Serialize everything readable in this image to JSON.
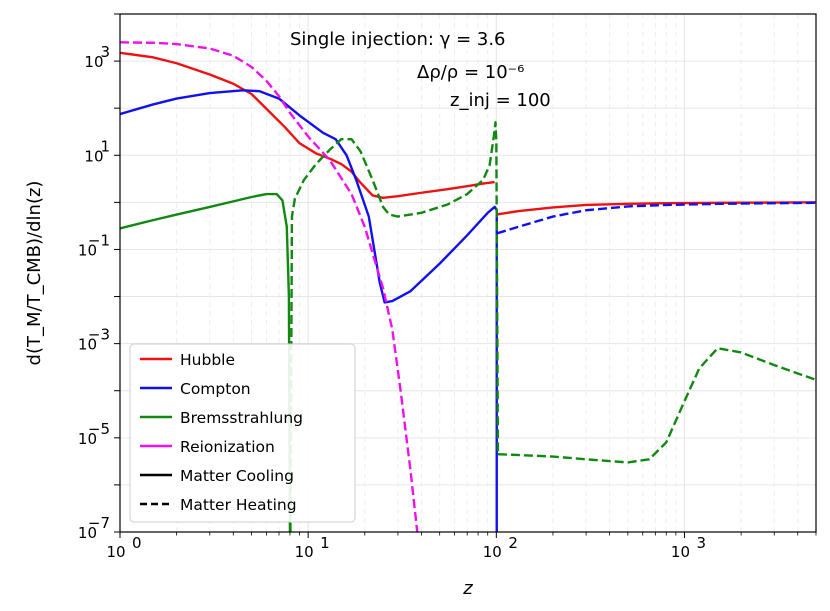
{
  "chart_data": {
    "type": "line",
    "xscale": "log",
    "yscale": "log",
    "xlim": [
      1,
      5000
    ],
    "ylim": [
      1e-07,
      10000
    ],
    "xlabel": "z",
    "ylabel": "d(T_M/T_CMB)/dln(z)",
    "grid": true,
    "legend_position": "lower-left",
    "annotations": [
      "Single injection: γ = 3.6",
      "Δρ/ρ = 10⁻⁶",
      "z_inj = 100"
    ],
    "x_ticks": [
      {
        "value": 1,
        "label": "10",
        "exp": "0"
      },
      {
        "value": 10,
        "label": "10",
        "exp": "1"
      },
      {
        "value": 100,
        "label": "10",
        "exp": "2"
      },
      {
        "value": 1000,
        "label": "10",
        "exp": "3"
      }
    ],
    "y_ticks": [
      {
        "value": 1e-07,
        "label": "10",
        "exp": "−7"
      },
      {
        "value": 1e-05,
        "label": "10",
        "exp": "−5"
      },
      {
        "value": 0.001,
        "label": "10",
        "exp": "−3"
      },
      {
        "value": 0.1,
        "label": "10",
        "exp": "−1"
      },
      {
        "value": 10,
        "label": "10",
        "exp": "1"
      },
      {
        "value": 1000,
        "label": "10",
        "exp": "3"
      }
    ],
    "legend": [
      {
        "label": "Hubble",
        "color": "#ee1111",
        "dash": "solid"
      },
      {
        "label": "Compton",
        "color": "#1111ee",
        "dash": "solid"
      },
      {
        "label": "Bremsstrahlung",
        "color": "#118811",
        "dash": "solid"
      },
      {
        "label": "Reionization",
        "color": "#ee11ee",
        "dash": "solid"
      },
      {
        "label": "Matter Cooling",
        "color": "#000000",
        "dash": "solid"
      },
      {
        "label": "Matter Heating",
        "color": "#000000",
        "dash": "dashed"
      }
    ],
    "series": [
      {
        "name": "Hubble",
        "color": "#ee1111",
        "segments": [
          {
            "style": "solid",
            "points": [
              [
                1,
                1500
              ],
              [
                1.5,
                1200
              ],
              [
                2,
                900
              ],
              [
                3,
                520
              ],
              [
                4,
                330
              ],
              [
                5,
                200
              ],
              [
                6.3,
                80
              ],
              [
                7.5,
                40
              ],
              [
                9,
                18
              ],
              [
                11,
                11
              ],
              [
                13,
                8.5
              ],
              [
                15,
                6.5
              ],
              [
                17,
                4.5
              ],
              [
                19,
                2.6
              ],
              [
                22,
                1.4
              ],
              [
                25,
                1.25
              ],
              [
                30,
                1.35
              ],
              [
                40,
                1.6
              ],
              [
                55,
                1.9
              ],
              [
                70,
                2.2
              ],
              [
                85,
                2.5
              ],
              [
                98,
                2.7
              ]
            ]
          },
          {
            "style": "solid",
            "points": [
              [
                100,
                0.55
              ],
              [
                130,
                0.65
              ],
              [
                200,
                0.78
              ],
              [
                300,
                0.88
              ],
              [
                500,
                0.93
              ],
              [
                800,
                0.96
              ],
              [
                1500,
                0.98
              ],
              [
                3000,
                0.99
              ],
              [
                5000,
                1
              ]
            ]
          }
        ]
      },
      {
        "name": "Compton",
        "color": "#1111ee",
        "segments": [
          {
            "style": "solid",
            "points": [
              [
                1,
                75
              ],
              [
                1.5,
                120
              ],
              [
                2,
                160
              ],
              [
                3,
                210
              ],
              [
                4.5,
                240
              ],
              [
                5.5,
                230
              ],
              [
                7,
                160
              ],
              [
                9,
                70
              ],
              [
                12,
                30
              ],
              [
                14,
                22
              ],
              [
                16,
                10
              ],
              [
                18,
                3
              ],
              [
                21,
                0.5
              ],
              [
                24,
                0.02
              ],
              [
                25.5,
                0.0075
              ],
              [
                28,
                0.008
              ],
              [
                35,
                0.013
              ],
              [
                50,
                0.05
              ],
              [
                70,
                0.2
              ],
              [
                90,
                0.6
              ],
              [
                98,
                0.8
              ],
              [
                100,
                0.7
              ]
            ]
          },
          {
            "style": "solid",
            "points": [
              [
                100.5,
                0.6
              ],
              [
                100.5,
                1e-07
              ]
            ]
          },
          {
            "style": "dashed",
            "points": [
              [
                101,
                0.22
              ],
              [
                130,
                0.3
              ],
              [
                200,
                0.5
              ],
              [
                300,
                0.68
              ],
              [
                500,
                0.82
              ],
              [
                800,
                0.88
              ],
              [
                1500,
                0.93
              ],
              [
                3000,
                0.96
              ],
              [
                5000,
                0.98
              ]
            ]
          }
        ]
      },
      {
        "name": "Bremsstrahlung",
        "color": "#118811",
        "segments": [
          {
            "style": "solid",
            "points": [
              [
                1,
                0.28
              ],
              [
                1.5,
                0.42
              ],
              [
                2,
                0.55
              ],
              [
                3,
                0.8
              ],
              [
                4,
                1.05
              ],
              [
                5,
                1.3
              ],
              [
                6,
                1.5
              ],
              [
                6.8,
                1.5
              ],
              [
                7.3,
                1.1
              ],
              [
                7.7,
                0.3
              ],
              [
                7.9,
                0.01
              ],
              [
                8,
                1e-07
              ]
            ]
          },
          {
            "style": "dashed",
            "points": [
              [
                8.05,
                1e-07
              ],
              [
                8.2,
                0.5
              ],
              [
                8.5,
                1.2
              ],
              [
                9.5,
                3
              ],
              [
                11,
                6.5
              ],
              [
                13,
                13
              ],
              [
                15,
                22
              ],
              [
                17,
                22
              ],
              [
                19,
                12
              ],
              [
                22,
                3
              ],
              [
                25,
                0.8
              ],
              [
                27,
                0.55
              ],
              [
                30,
                0.5
              ],
              [
                40,
                0.6
              ],
              [
                55,
                0.9
              ],
              [
                70,
                1.5
              ],
              [
                85,
                3
              ],
              [
                92,
                6
              ],
              [
                97,
                25
              ],
              [
                99,
                50
              ],
              [
                100,
                20
              ],
              [
                101,
                0.01
              ],
              [
                102,
                4.5e-06
              ]
            ]
          },
          {
            "style": "dashed",
            "points": [
              [
                102,
                4.5e-06
              ],
              [
                200,
                4e-06
              ],
              [
                300,
                3.5e-06
              ],
              [
                500,
                3e-06
              ],
              [
                650,
                3.5e-06
              ],
              [
                800,
                8e-06
              ],
              [
                1000,
                6e-05
              ],
              [
                1200,
                0.0003
              ],
              [
                1500,
                0.0008
              ],
              [
                2000,
                0.00065
              ],
              [
                3000,
                0.00035
              ],
              [
                5000,
                0.00017
              ]
            ]
          }
        ]
      },
      {
        "name": "Reionization",
        "color": "#ee11ee",
        "segments": [
          {
            "style": "dashed",
            "points": [
              [
                1,
                2500
              ],
              [
                1.5,
                2450
              ],
              [
                2,
                2300
              ],
              [
                3,
                1850
              ],
              [
                4,
                1300
              ],
              [
                5,
                750
              ],
              [
                6,
                380
              ],
              [
                7,
                180
              ],
              [
                8,
                80
              ],
              [
                10,
                25
              ],
              [
                13,
                8
              ],
              [
                17,
                1.5
              ],
              [
                20,
                0.3
              ],
              [
                25,
                0.015
              ],
              [
                28,
                0.002
              ],
              [
                31,
                0.0001
              ],
              [
                35,
                2e-06
              ],
              [
                38,
                1e-07
              ]
            ]
          }
        ]
      }
    ]
  }
}
